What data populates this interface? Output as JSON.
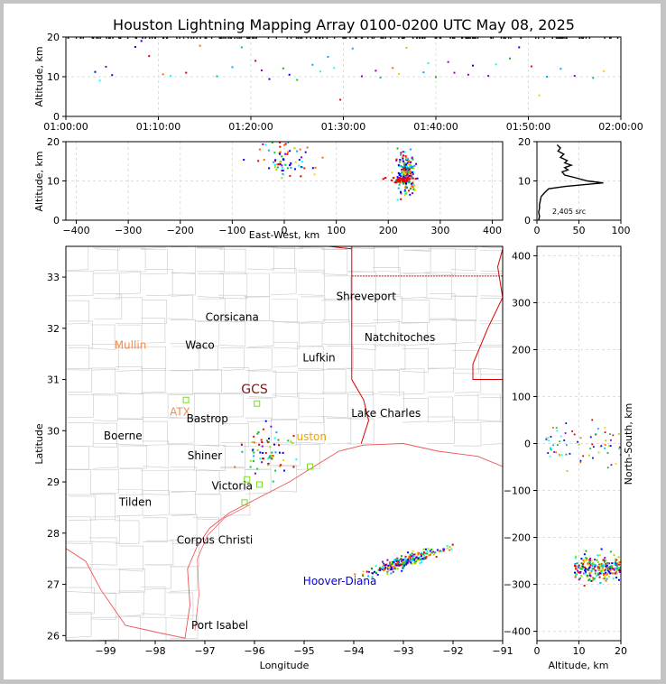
{
  "title": "Houston Lightning Mapping Array 0100-0200 UTC May 08, 2025",
  "colors": {
    "land": "#ffffff",
    "county": "#c8c8c8",
    "state": "#dd0000",
    "coast": "#ee5555",
    "grid": "#dddddd",
    "axis": "#000000",
    "frame_bg": "#c4c4c4"
  },
  "chart_data": [
    {
      "panel": "altitude-time",
      "type": "scatter",
      "xlabel": "",
      "ylabel": "Altitude, km",
      "xlim": [
        "01:00:00",
        "02:00:00"
      ],
      "ylim": [
        0,
        20
      ],
      "xticks": [
        "01:00:00",
        "01:10:00",
        "01:20:00",
        "01:30:00",
        "01:40:00",
        "01:50:00",
        "02:00:00"
      ],
      "yticks": [
        0,
        10,
        20
      ],
      "points": [
        [
          "01:03:10",
          11.2
        ],
        [
          "01:03:40",
          9.0
        ],
        [
          "01:04:20",
          12.5
        ],
        [
          "01:05:00",
          10.4
        ],
        [
          "01:07:30",
          17.5
        ],
        [
          "01:08:10",
          19.0
        ],
        [
          "01:09:00",
          15.2
        ],
        [
          "01:10:30",
          10.6
        ],
        [
          "01:11:20",
          10.2
        ],
        [
          "01:13:00",
          11.0
        ],
        [
          "01:16:20",
          10.1
        ],
        [
          "01:18:00",
          12.4
        ],
        [
          "01:19:00",
          17.4
        ],
        [
          "01:20:30",
          14.0
        ],
        [
          "01:21:10",
          11.6
        ],
        [
          "01:22:00",
          9.4
        ],
        [
          "01:23:30",
          12.1
        ],
        [
          "01:24:10",
          10.5
        ],
        [
          "01:25:00",
          9.2
        ],
        [
          "01:26:40",
          13.0
        ],
        [
          "01:27:30",
          11.3
        ],
        [
          "01:28:20",
          15.0
        ],
        [
          "01:29:00",
          12.2
        ],
        [
          "01:31:00",
          17.1
        ],
        [
          "01:32:00",
          10.1
        ],
        [
          "01:33:30",
          11.5
        ],
        [
          "01:34:00",
          9.8
        ],
        [
          "01:35:20",
          12.2
        ],
        [
          "01:36:00",
          10.7
        ],
        [
          "01:38:40",
          11.1
        ],
        [
          "01:39:10",
          13.4
        ],
        [
          "01:40:00",
          9.9
        ],
        [
          "01:41:20",
          13.7
        ],
        [
          "01:42:00",
          11.0
        ],
        [
          "01:43:30",
          10.5
        ],
        [
          "01:44:00",
          12.8
        ],
        [
          "01:45:40",
          10.2
        ],
        [
          "01:46:30",
          13.1
        ],
        [
          "01:48:00",
          14.6
        ],
        [
          "01:49:00",
          17.4
        ],
        [
          "01:50:20",
          12.6
        ],
        [
          "01:51:10",
          5.3
        ],
        [
          "01:52:00",
          10.0
        ],
        [
          "01:53:30",
          12.0
        ],
        [
          "01:55:00",
          10.2
        ],
        [
          "01:57:00",
          9.7
        ],
        [
          "01:58:10",
          11.4
        ],
        [
          "01:29:40",
          4.2
        ],
        [
          "01:14:30",
          17.8
        ],
        [
          "01:36:50",
          17.3
        ]
      ]
    },
    {
      "panel": "altitude-east-west",
      "type": "scatter",
      "xlabel": "East-West, km",
      "ylabel": "Altitude, km",
      "xlim": [
        -420,
        420
      ],
      "ylim": [
        0,
        20
      ],
      "xticks": [
        -400,
        -300,
        -200,
        -100,
        0,
        100,
        200,
        300,
        400
      ],
      "yticks": [
        0,
        10,
        20
      ],
      "clusters": [
        {
          "x_center": 235,
          "alt_center": 12,
          "x_spread": 20,
          "alt_spread": 4,
          "count": 220
        },
        {
          "x_center": 5,
          "alt_center": 15,
          "x_spread": 55,
          "alt_spread": 4,
          "count": 70
        }
      ]
    },
    {
      "panel": "source-histogram",
      "type": "line",
      "xlabel": "",
      "ylabel": "",
      "xlim": [
        0,
        100
      ],
      "ylim": [
        0,
        20
      ],
      "xticks": [
        0,
        50,
        100
      ],
      "yticks": [
        0,
        10,
        20
      ],
      "annotation": "2,405 src",
      "x": [
        2,
        3,
        2,
        3,
        3,
        4,
        5,
        9,
        14,
        34,
        54,
        79,
        60,
        46,
        33,
        30,
        37,
        33,
        41,
        33,
        36,
        28,
        32,
        25,
        28,
        24
      ],
      "y": [
        0,
        1,
        2,
        3,
        4,
        5,
        6,
        7,
        8,
        8.6,
        9.0,
        9.5,
        10,
        10.8,
        11.5,
        12.3,
        12.8,
        13.4,
        14,
        14.6,
        15.2,
        16,
        16.8,
        17.6,
        18.4,
        19.2
      ]
    },
    {
      "panel": "plan-map",
      "type": "scatter",
      "xlabel": "Longitude",
      "ylabel": "Latitude",
      "xlim": [
        -99.8,
        -91.0
      ],
      "ylim": [
        25.9,
        33.6
      ],
      "xticks": [
        -99,
        -98,
        -97,
        -96,
        -95,
        -94,
        -93,
        -92,
        -91
      ],
      "yticks": [
        26,
        27,
        28,
        29,
        30,
        31,
        32,
        33
      ],
      "labels": [
        {
          "text": "Shreveport",
          "lon": -93.75,
          "lat": 32.55,
          "color": "#000000"
        },
        {
          "text": "Corsicana",
          "lon": -96.45,
          "lat": 32.15,
          "color": "#000000"
        },
        {
          "text": "Natchitoches",
          "lon": -93.07,
          "lat": 31.75,
          "color": "#000000"
        },
        {
          "text": "Mullin",
          "lon": -98.5,
          "lat": 31.6,
          "color": "#f08c50"
        },
        {
          "text": "Waco",
          "lon": -97.1,
          "lat": 31.6,
          "color": "#000000"
        },
        {
          "text": "Lufkin",
          "lon": -94.7,
          "lat": 31.35,
          "color": "#000000"
        },
        {
          "text": "GCS",
          "lon": -96.0,
          "lat": 30.73,
          "color": "#7a1a1a"
        },
        {
          "text": "ATX",
          "lon": -97.5,
          "lat": 30.3,
          "color": "#f08c50"
        },
        {
          "text": "Bastrop",
          "lon": -96.95,
          "lat": 30.16,
          "color": "#000000"
        },
        {
          "text": "Lake Charles",
          "lon": -93.35,
          "lat": 30.27,
          "color": "#000000"
        },
        {
          "text": "Boerne",
          "lon": -98.65,
          "lat": 29.83,
          "color": "#000000"
        },
        {
          "text": "uston",
          "lon": -94.85,
          "lat": 29.81,
          "color": "#f0a000"
        },
        {
          "text": "Shiner",
          "lon": -97.0,
          "lat": 29.44,
          "color": "#000000"
        },
        {
          "text": "Victoria",
          "lon": -96.45,
          "lat": 28.85,
          "color": "#000000"
        },
        {
          "text": "Tilden",
          "lon": -98.4,
          "lat": 28.53,
          "color": "#000000"
        },
        {
          "text": "Corpus Christi",
          "lon": -96.8,
          "lat": 27.79,
          "color": "#000000"
        },
        {
          "text": "Hoover-Diana",
          "lon": -94.28,
          "lat": 26.99,
          "color": "#0000dd"
        },
        {
          "text": "Port Isabel",
          "lon": -96.7,
          "lat": 26.13,
          "color": "#000000"
        }
      ],
      "stations": [
        [
          -97.38,
          30.6
        ],
        [
          -95.95,
          30.53
        ],
        [
          -96.15,
          29.05
        ],
        [
          -94.88,
          29.3
        ],
        [
          -96.2,
          28.6
        ],
        [
          -95.9,
          28.95
        ]
      ],
      "clusters": [
        {
          "lon_center": -92.95,
          "lat_center": 27.45,
          "count": 260
        },
        {
          "lon_center": -95.75,
          "lat_center": 29.6,
          "count": 70
        }
      ]
    },
    {
      "panel": "altitude-north-south",
      "type": "scatter",
      "xlabel": "Altitude, km",
      "ylabel": "North-South, km",
      "xlim": [
        0,
        20
      ],
      "ylim": [
        -420,
        420
      ],
      "xticks": [
        0,
        10,
        20
      ],
      "yticks": [
        -400,
        -300,
        -200,
        -100,
        0,
        100,
        200,
        300,
        400
      ]
    }
  ]
}
